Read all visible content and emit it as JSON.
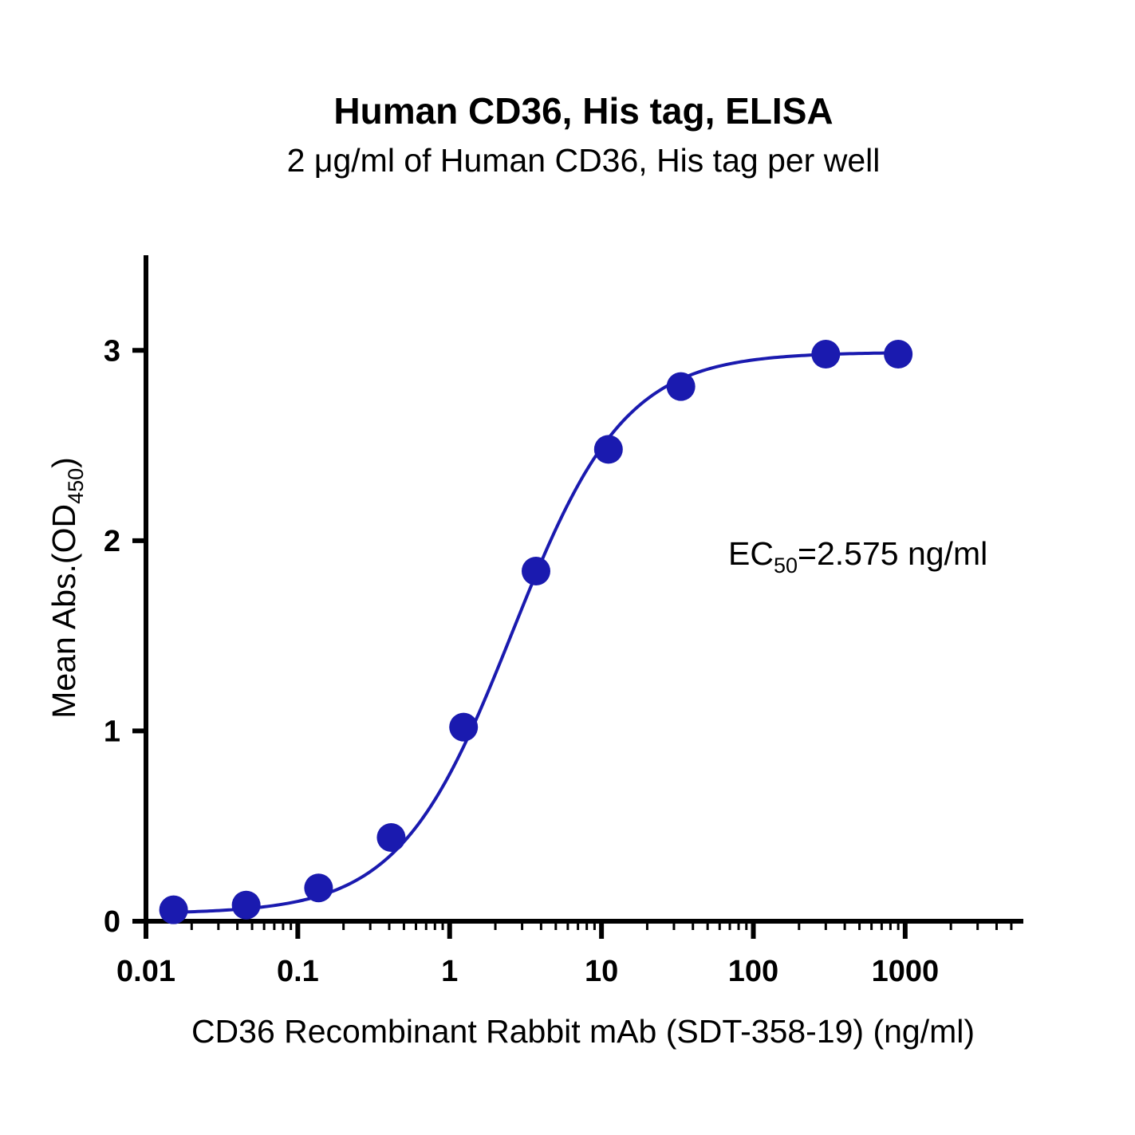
{
  "chart_data": {
    "type": "scatter",
    "title": "Human CD36, His tag, ELISA",
    "subtitle": "2 μg/ml of Human CD36, His tag per well",
    "xlabel": "CD36 Recombinant Rabbit mAb (SDT-358-19) (ng/ml)",
    "ylabel": {
      "main": "Mean Abs.(OD",
      "sub": "450",
      "end": ")"
    },
    "x_scale": "log",
    "xlim": [
      0.01,
      6000
    ],
    "ylim": [
      0,
      3.5
    ],
    "x_ticks": [
      0.01,
      0.1,
      1,
      10,
      100,
      1000
    ],
    "x_tick_labels": [
      "0.01",
      "0.1",
      "1",
      "10",
      "100",
      "1000"
    ],
    "y_ticks": [
      0,
      1,
      2,
      3
    ],
    "y_tick_labels": [
      "0",
      "1",
      "2",
      "3"
    ],
    "grid": false,
    "series": [
      {
        "x": [
          0.0152,
          0.0457,
          0.137,
          0.412,
          1.235,
          3.704,
          11.11,
          33.33,
          300,
          900
        ],
        "y": [
          0.06,
          0.085,
          0.175,
          0.44,
          1.02,
          1.84,
          2.48,
          2.81,
          2.98,
          2.98
        ],
        "fit": {
          "model": "4PL",
          "bottom": 0.04,
          "top": 2.99,
          "ec50": 2.575,
          "hill": 1.17
        },
        "color": "#1a1aaf"
      }
    ],
    "annotation": {
      "main": "EC",
      "sub": "50",
      "end": "=2.575 ng/ml"
    }
  }
}
